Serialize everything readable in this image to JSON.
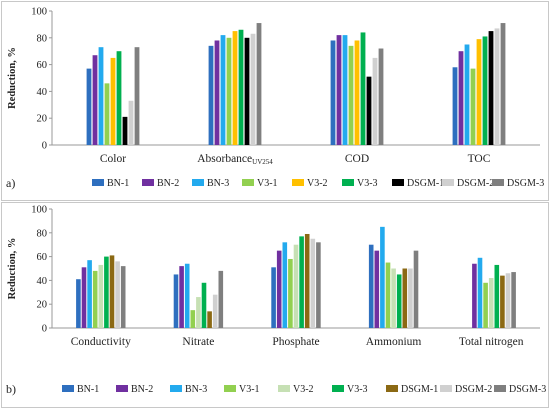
{
  "chart_data": [
    {
      "type": "bar",
      "panel_label": "a)",
      "ylabel": "Reduction, %",
      "ylim": [
        0,
        100
      ],
      "yticks": [
        0,
        20,
        40,
        60,
        80,
        100
      ],
      "grid": false,
      "legend_position": "bottom",
      "categories": [
        {
          "name": "Color",
          "subscript": ""
        },
        {
          "name": "Absorbance",
          "subscript": "UV254"
        },
        {
          "name": "COD",
          "subscript": ""
        },
        {
          "name": "TOC",
          "subscript": ""
        }
      ],
      "series": [
        {
          "name": "BN-1",
          "color": "#2e6fbf",
          "values": [
            57,
            74,
            78,
            58
          ]
        },
        {
          "name": "BN-2",
          "color": "#7030a0",
          "values": [
            67,
            78,
            82,
            70
          ]
        },
        {
          "name": "BN-3",
          "color": "#23aaee",
          "values": [
            73,
            82,
            82,
            75
          ]
        },
        {
          "name": "V3-1",
          "color": "#92d050",
          "values": [
            46,
            80,
            74,
            57
          ]
        },
        {
          "name": "V3-2",
          "color": "#ffc000",
          "values": [
            65,
            85,
            78,
            79
          ]
        },
        {
          "name": "V3-3",
          "color": "#00b050",
          "values": [
            70,
            86,
            84,
            81
          ]
        },
        {
          "name": "DSGM-1",
          "color": "#000000",
          "values": [
            21,
            80,
            51,
            85
          ]
        },
        {
          "name": "DSGM-2",
          "color": "#d0d0d0",
          "values": [
            33,
            83,
            65,
            87
          ]
        },
        {
          "name": "DSGM-3",
          "color": "#7f7f7f",
          "values": [
            73,
            91,
            72,
            91
          ]
        }
      ]
    },
    {
      "type": "bar",
      "panel_label": "b)",
      "ylabel": "Reduction, %",
      "ylim": [
        0,
        100
      ],
      "yticks": [
        0,
        20,
        40,
        60,
        80,
        100
      ],
      "grid": false,
      "legend_position": "bottom",
      "categories": [
        {
          "name": "Conductivity",
          "subscript": ""
        },
        {
          "name": "Nitrate",
          "subscript": ""
        },
        {
          "name": "Phosphate",
          "subscript": ""
        },
        {
          "name": "Ammonium",
          "subscript": ""
        },
        {
          "name": "Total nitrogen",
          "subscript": ""
        }
      ],
      "series": [
        {
          "name": "BN-1",
          "color": "#2e6fbf",
          "values": [
            41,
            45,
            51,
            70,
            0
          ]
        },
        {
          "name": "BN-2",
          "color": "#7030a0",
          "values": [
            51,
            52,
            65,
            65,
            54
          ]
        },
        {
          "name": "BN-3",
          "color": "#23aaee",
          "values": [
            57,
            54,
            72,
            85,
            59
          ]
        },
        {
          "name": "V3-1",
          "color": "#92d050",
          "values": [
            48,
            15,
            58,
            55,
            38
          ]
        },
        {
          "name": "V3-2",
          "color": "#c6e0b4",
          "values": [
            53,
            26,
            70,
            50,
            42
          ]
        },
        {
          "name": "V3-3",
          "color": "#00b050",
          "values": [
            60,
            38,
            77,
            45,
            53
          ]
        },
        {
          "name": "DSGM-1",
          "color": "#8b6914",
          "values": [
            61,
            14,
            79,
            50,
            44
          ]
        },
        {
          "name": "DSGM-2",
          "color": "#d0d0d0",
          "values": [
            56,
            28,
            75,
            50,
            46
          ]
        },
        {
          "name": "DSGM-3",
          "color": "#7f7f7f",
          "values": [
            52,
            48,
            72,
            65,
            47
          ]
        }
      ]
    }
  ]
}
